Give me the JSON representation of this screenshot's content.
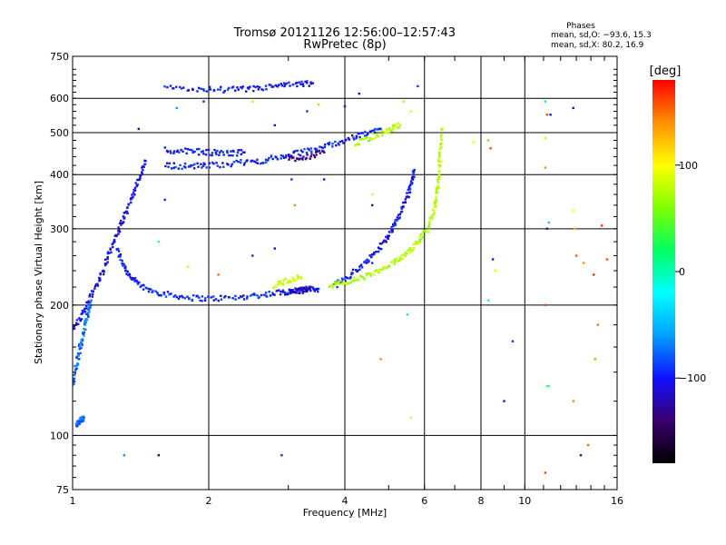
{
  "chart_data": {
    "type": "scatter",
    "title": "Tromsø 20121126 12:56:00–12:57:43",
    "subtitle": "RwPretec (8p)",
    "xlabel": "Frequency [MHz]",
    "ylabel": "Stationary phase Virtual Height [km]",
    "xscale": "log",
    "yscale": "log",
    "xlim": [
      1,
      16
    ],
    "ylim": [
      75,
      750
    ],
    "x_ticks": [
      "1",
      "2",
      "4",
      "6",
      "8",
      "10",
      "16"
    ],
    "y_ticks": [
      "75",
      "100",
      "200",
      "300",
      "400",
      "500",
      "600",
      "750"
    ],
    "grid": true,
    "phase_stats": {
      "heading": "Phases",
      "line_o": "mean, sd,O: −93.6, 15.3",
      "line_x": "mean, sd,X:  80.2, 16.9"
    },
    "colorbar": {
      "label": "[deg]",
      "range": [
        -180,
        180
      ],
      "ticks": [
        "100",
        "0",
        "−100"
      ],
      "tick_values": [
        100,
        0,
        -100
      ],
      "colors": [
        "#000000",
        "#3a0070",
        "#1010ff",
        "#00a0ff",
        "#00ffff",
        "#00ff60",
        "#80ff00",
        "#ffff00",
        "#ff9000",
        "#ff0000"
      ]
    },
    "traces": [
      {
        "name": "",
        "phase": -95,
        "points": [
          [
            1.25,
            270
          ],
          [
            1.3,
            245
          ],
          [
            1.35,
            230
          ],
          [
            1.45,
            218
          ],
          [
            1.6,
            212
          ],
          [
            1.8,
            208
          ],
          [
            2.0,
            207
          ],
          [
            2.3,
            208
          ],
          [
            2.6,
            211
          ],
          [
            2.9,
            214
          ],
          [
            3.1,
            216
          ],
          [
            3.3,
            217
          ],
          [
            3.5,
            218
          ]
        ]
      },
      {
        "name": "",
        "phase": -120,
        "points": [
          [
            3.0,
            214
          ],
          [
            3.2,
            216
          ],
          [
            3.35,
            218
          ]
        ]
      },
      {
        "name": "",
        "phase": -100,
        "points": [
          [
            3.8,
            222
          ],
          [
            4.0,
            230
          ],
          [
            4.3,
            243
          ],
          [
            4.6,
            260
          ],
          [
            4.9,
            280
          ],
          [
            5.1,
            300
          ],
          [
            5.3,
            325
          ],
          [
            5.5,
            355
          ],
          [
            5.6,
            380
          ],
          [
            5.7,
            410
          ]
        ]
      },
      {
        "name": "",
        "phase": 75,
        "points": [
          [
            3.7,
            222
          ],
          [
            4.0,
            225
          ],
          [
            4.4,
            232
          ],
          [
            4.8,
            240
          ],
          [
            5.2,
            252
          ],
          [
            5.5,
            265
          ],
          [
            5.8,
            280
          ],
          [
            6.1,
            300
          ],
          [
            6.3,
            330
          ],
          [
            6.4,
            360
          ],
          [
            6.45,
            400
          ],
          [
            6.5,
            450
          ],
          [
            6.55,
            510
          ]
        ]
      },
      {
        "name": "",
        "phase": 85,
        "points": [
          [
            2.8,
            222
          ],
          [
            3.0,
            228
          ],
          [
            3.2,
            232
          ]
        ]
      },
      {
        "name": "",
        "phase": -95,
        "points": [
          [
            1.6,
            420
          ],
          [
            1.8,
            418
          ],
          [
            2.0,
            420
          ],
          [
            2.3,
            425
          ],
          [
            2.6,
            430
          ],
          [
            2.9,
            440
          ],
          [
            3.2,
            450
          ],
          [
            3.6,
            465
          ],
          [
            4.0,
            480
          ],
          [
            4.4,
            495
          ],
          [
            4.8,
            510
          ]
        ]
      },
      {
        "name": "",
        "phase": -130,
        "points": [
          [
            3.0,
            435
          ],
          [
            3.3,
            440
          ],
          [
            3.6,
            450
          ]
        ]
      },
      {
        "name": "",
        "phase": -100,
        "points": [
          [
            1.6,
            455
          ],
          [
            1.8,
            453
          ],
          [
            2.0,
            450
          ],
          [
            2.2,
            448
          ],
          [
            2.4,
            450
          ]
        ]
      },
      {
        "name": "",
        "phase": 75,
        "points": [
          [
            4.2,
            470
          ],
          [
            4.6,
            490
          ],
          [
            5.0,
            505
          ],
          [
            5.3,
            520
          ]
        ]
      },
      {
        "name": "",
        "phase": -98,
        "points": [
          [
            1.6,
            632
          ],
          [
            1.9,
            630
          ],
          [
            2.2,
            628
          ],
          [
            2.5,
            630
          ],
          [
            2.8,
            640
          ],
          [
            3.1,
            645
          ],
          [
            3.4,
            650
          ]
        ]
      },
      {
        "name": "",
        "phase": -105,
        "points": [
          [
            1.0,
            175
          ],
          [
            1.05,
            190
          ],
          [
            1.1,
            210
          ],
          [
            1.15,
            230
          ],
          [
            1.2,
            260
          ],
          [
            1.25,
            290
          ],
          [
            1.3,
            320
          ],
          [
            1.35,
            350
          ],
          [
            1.4,
            390
          ],
          [
            1.45,
            430
          ]
        ]
      },
      {
        "name": "",
        "phase": -75,
        "points": [
          [
            1.0,
            130
          ],
          [
            1.02,
            145
          ],
          [
            1.04,
            160
          ],
          [
            1.06,
            175
          ],
          [
            1.08,
            190
          ],
          [
            1.1,
            205
          ]
        ]
      },
      {
        "name": "",
        "phase": -80,
        "points": [
          [
            1.02,
            105
          ],
          [
            1.04,
            108
          ],
          [
            1.06,
            110
          ]
        ]
      }
    ],
    "scattered_points": [
      {
        "x": 1.95,
        "y": 590,
        "phase": -95
      },
      {
        "x": 1.7,
        "y": 570,
        "phase": -60
      },
      {
        "x": 2.5,
        "y": 590,
        "phase": 80
      },
      {
        "x": 2.8,
        "y": 520,
        "phase": -100
      },
      {
        "x": 3.3,
        "y": 560,
        "phase": -90
      },
      {
        "x": 3.5,
        "y": 580,
        "phase": 120
      },
      {
        "x": 4.0,
        "y": 575,
        "phase": -100
      },
      {
        "x": 4.3,
        "y": 615,
        "phase": -110
      },
      {
        "x": 5.4,
        "y": 590,
        "phase": 70
      },
      {
        "x": 5.6,
        "y": 560,
        "phase": 90
      },
      {
        "x": 5.8,
        "y": 640,
        "phase": -90
      },
      {
        "x": 1.4,
        "y": 510,
        "phase": -130
      },
      {
        "x": 1.6,
        "y": 350,
        "phase": -95
      },
      {
        "x": 1.55,
        "y": 280,
        "phase": -20
      },
      {
        "x": 1.8,
        "y": 245,
        "phase": 110
      },
      {
        "x": 2.1,
        "y": 235,
        "phase": 150
      },
      {
        "x": 2.5,
        "y": 260,
        "phase": -95
      },
      {
        "x": 2.8,
        "y": 270,
        "phase": -105
      },
      {
        "x": 3.1,
        "y": 340,
        "phase": 140
      },
      {
        "x": 3.6,
        "y": 390,
        "phase": -100
      },
      {
        "x": 4.6,
        "y": 360,
        "phase": 90
      },
      {
        "x": 4.6,
        "y": 340,
        "phase": -120
      },
      {
        "x": 3.05,
        "y": 390,
        "phase": -90
      },
      {
        "x": 5.5,
        "y": 190,
        "phase": 0
      },
      {
        "x": 4.8,
        "y": 150,
        "phase": 140
      },
      {
        "x": 5.6,
        "y": 110,
        "phase": 80
      },
      {
        "x": 1.55,
        "y": 90,
        "phase": -140
      },
      {
        "x": 1.3,
        "y": 90,
        "phase": -60
      },
      {
        "x": 2.9,
        "y": 90,
        "phase": -95
      },
      {
        "x": 4.6,
        "y": 250,
        "phase": -90
      },
      {
        "x": 8.3,
        "y": 480,
        "phase": 130
      },
      {
        "x": 8.4,
        "y": 460,
        "phase": 160
      },
      {
        "x": 7.7,
        "y": 475,
        "phase": 95
      },
      {
        "x": 8.5,
        "y": 255,
        "phase": -110
      },
      {
        "x": 8.3,
        "y": 205,
        "phase": -20
      },
      {
        "x": 8.6,
        "y": 240,
        "phase": 90
      },
      {
        "x": 9.0,
        "y": 120,
        "phase": -110
      },
      {
        "x": 9.4,
        "y": 165,
        "phase": -90
      },
      {
        "x": 11.1,
        "y": 590,
        "phase": -30
      },
      {
        "x": 11.2,
        "y": 550,
        "phase": 160
      },
      {
        "x": 11.4,
        "y": 550,
        "phase": -100
      },
      {
        "x": 12.8,
        "y": 570,
        "phase": -120
      },
      {
        "x": 11.1,
        "y": 485,
        "phase": 110
      },
      {
        "x": 11.1,
        "y": 415,
        "phase": 140
      },
      {
        "x": 11.2,
        "y": 300,
        "phase": -110
      },
      {
        "x": 11.3,
        "y": 310,
        "phase": -40
      },
      {
        "x": 12.9,
        "y": 300,
        "phase": 130
      },
      {
        "x": 12.8,
        "y": 330,
        "phase": 100
      },
      {
        "x": 13.0,
        "y": 260,
        "phase": 155
      },
      {
        "x": 13.5,
        "y": 250,
        "phase": 140
      },
      {
        "x": 14.8,
        "y": 305,
        "phase": 170
      },
      {
        "x": 14.2,
        "y": 235,
        "phase": 170
      },
      {
        "x": 15.2,
        "y": 255,
        "phase": 160
      },
      {
        "x": 11.1,
        "y": 200,
        "phase": 160
      },
      {
        "x": 14.5,
        "y": 180,
        "phase": 150
      },
      {
        "x": 11.3,
        "y": 130,
        "phase": -20
      },
      {
        "x": 14.3,
        "y": 150,
        "phase": 140
      },
      {
        "x": 12.8,
        "y": 120,
        "phase": 140
      },
      {
        "x": 11.2,
        "y": 130,
        "phase": 50
      },
      {
        "x": 13.3,
        "y": 90,
        "phase": -110
      },
      {
        "x": 13.8,
        "y": 95,
        "phase": 150
      },
      {
        "x": 11.1,
        "y": 82,
        "phase": 165
      }
    ]
  }
}
